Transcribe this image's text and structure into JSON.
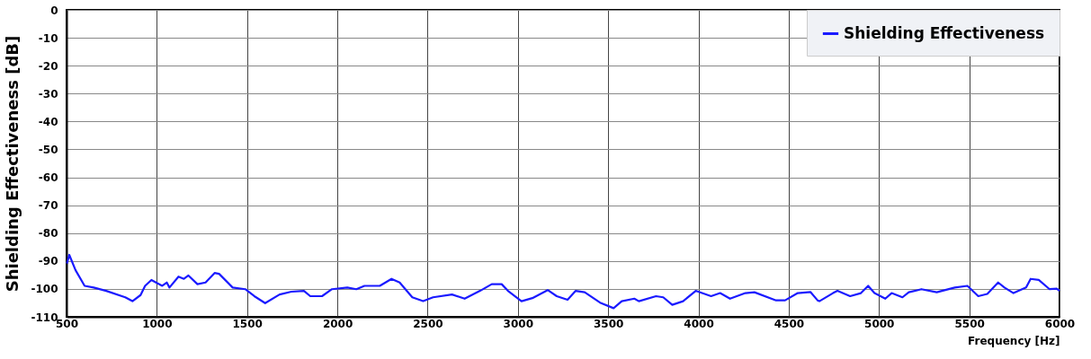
{
  "chart_data": {
    "type": "line",
    "ylabel": "Shielding Effectiveness [dB]",
    "xlabel": "Frequency [Hz]",
    "xlim": [
      500,
      6000
    ],
    "xticks": [
      500,
      1000,
      1500,
      2000,
      2500,
      3000,
      3500,
      4000,
      4500,
      5000,
      5500,
      6000
    ],
    "ylim": [
      -110,
      0
    ],
    "yticks": [
      0,
      -10,
      -20,
      -30,
      -40,
      -50,
      -60,
      -70,
      -80,
      -90,
      -100,
      -110
    ],
    "grid": true,
    "legend": "top right",
    "marker": "none",
    "line_style": "solid",
    "series": [
      {
        "name": "Shielding Effectiveness",
        "color": "#1a1aff",
        "x": [
          502,
          515,
          550,
          600,
          650,
          720,
          825,
          865,
          910,
          935,
          970,
          1030,
          1055,
          1070,
          1120,
          1150,
          1175,
          1225,
          1270,
          1320,
          1345,
          1420,
          1490,
          1540,
          1600,
          1680,
          1745,
          1815,
          1850,
          1900,
          1915,
          1970,
          2055,
          2105,
          2150,
          2235,
          2300,
          2345,
          2415,
          2475,
          2530,
          2635,
          2705,
          2790,
          2855,
          2910,
          2945,
          3020,
          3080,
          3165,
          3215,
          3275,
          3320,
          3370,
          3455,
          3530,
          3575,
          3645,
          3670,
          3765,
          3805,
          3855,
          3915,
          3985,
          4070,
          4120,
          4175,
          4260,
          4310,
          4430,
          4480,
          4550,
          4620,
          4660,
          4670,
          4745,
          4770,
          4840,
          4900,
          4940,
          4975,
          5035,
          5070,
          5130,
          5165,
          5235,
          5320,
          5420,
          5490,
          5550,
          5600,
          5660,
          5695,
          5745,
          5815,
          5840,
          5885,
          5945,
          5985,
          6000
        ],
        "values": [
          -90.9,
          -87.8,
          -93.3,
          -98.9,
          -99.5,
          -100.7,
          -103,
          -104.4,
          -102.2,
          -98.9,
          -96.8,
          -98.9,
          -97.7,
          -99.5,
          -95.6,
          -96.4,
          -95.2,
          -98.3,
          -97.7,
          -94.3,
          -94.6,
          -99.5,
          -100.1,
          -102.6,
          -105.1,
          -102,
          -101,
          -100.7,
          -102.6,
          -102.6,
          -102.6,
          -100.1,
          -99.5,
          -100.1,
          -98.9,
          -98.9,
          -96.4,
          -97.7,
          -103,
          -104.4,
          -103,
          -102,
          -103.5,
          -100.7,
          -98.3,
          -98.3,
          -100.7,
          -104.4,
          -103.3,
          -100.4,
          -102.6,
          -103.9,
          -100.7,
          -101.2,
          -104.9,
          -106.9,
          -104.4,
          -103.5,
          -104.4,
          -102.6,
          -103,
          -105.7,
          -104.4,
          -100.7,
          -102.6,
          -101.5,
          -103.5,
          -101.5,
          -101.2,
          -104.1,
          -104.1,
          -101.5,
          -101.1,
          -104.1,
          -104.4,
          -101.5,
          -100.7,
          -102.6,
          -101.5,
          -98.9,
          -101.5,
          -103.5,
          -101.5,
          -103,
          -101.2,
          -100.1,
          -101.2,
          -99.5,
          -98.9,
          -102.6,
          -101.8,
          -97.7,
          -99.5,
          -101.5,
          -99.5,
          -96.4,
          -96.8,
          -100.1,
          -99.9,
          -100.7
        ]
      }
    ]
  }
}
